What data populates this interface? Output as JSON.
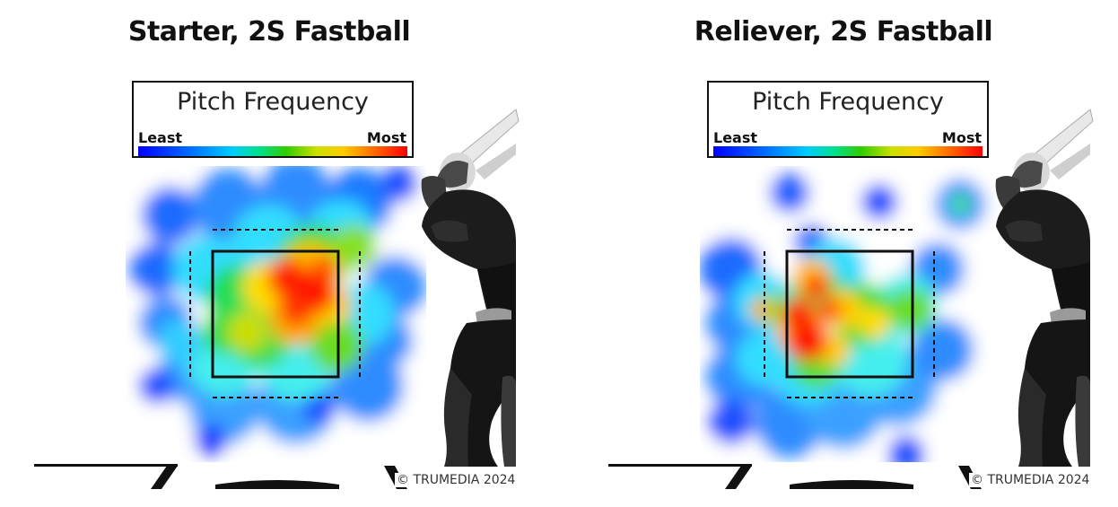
{
  "chart_data": [
    {
      "type": "heatmap",
      "title": "Starter, 2S Fastball",
      "legend": {
        "title": "Pitch Frequency",
        "low_label": "Least",
        "high_label": "Most",
        "colors": [
          "#0000ff",
          "#00ccff",
          "#33cc00",
          "#ffcc00",
          "#ff0000"
        ]
      },
      "copyright": "© TRUMEDIA 2024",
      "hotspots": [
        {
          "x": 0.22,
          "y": 0.93,
          "intensity": 0.55
        },
        {
          "x": 0.16,
          "y": 0.7,
          "intensity": 0.7
        },
        {
          "x": -0.18,
          "y": 0.2,
          "intensity": 0.45
        },
        {
          "x": 0.0,
          "y": 0.45,
          "intensity": 0.65
        },
        {
          "x": 0.28,
          "y": 0.52,
          "intensity": 0.6
        },
        {
          "x": -0.28,
          "y": 0.55,
          "intensity": 0.4
        },
        {
          "x": 0.55,
          "y": 0.93,
          "intensity": 0.35
        },
        {
          "x": -0.48,
          "y": 0.8,
          "intensity": 0.3
        },
        {
          "x": 0.1,
          "y": 0.25,
          "intensity": 0.4
        }
      ]
    },
    {
      "type": "heatmap",
      "title": "Reliever, 2S Fastball",
      "legend": {
        "title": "Pitch Frequency",
        "low_label": "Least",
        "high_label": "Most",
        "colors": [
          "#0000ff",
          "#00ccff",
          "#33cc00",
          "#ffcc00",
          "#ff0000"
        ]
      },
      "copyright": "© TRUMEDIA 2024",
      "hotspots": [
        {
          "x": -0.12,
          "y": 0.5,
          "intensity": 1.0
        },
        {
          "x": -0.08,
          "y": 0.82,
          "intensity": 0.75
        },
        {
          "x": 0.12,
          "y": 0.6,
          "intensity": 0.6
        },
        {
          "x": 0.3,
          "y": 0.65,
          "intensity": 0.45
        },
        {
          "x": -0.48,
          "y": 0.6,
          "intensity": 0.45
        },
        {
          "x": 0.0,
          "y": 0.2,
          "intensity": 0.4
        },
        {
          "x": 0.9,
          "y": 1.55,
          "intensity": 0.5
        },
        {
          "x": -0.38,
          "y": 0.12,
          "intensity": 0.35
        }
      ]
    }
  ]
}
